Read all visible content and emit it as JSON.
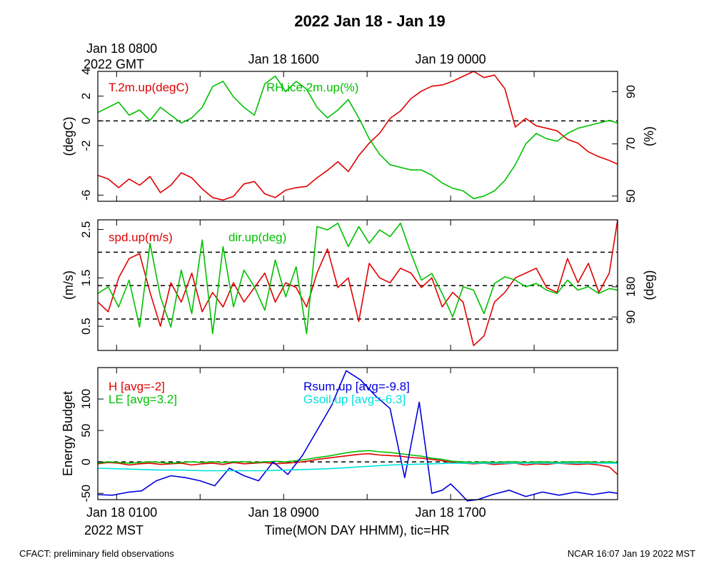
{
  "title": "2022 Jan 18 - Jan 19",
  "footer": {
    "left": "CFACT: preliminary field observations",
    "right": "NCAR 16:07 Jan 19 2022 MST"
  },
  "top_time_axis": {
    "labels": [
      {
        "hour": 1,
        "lines": [
          "Jan 18 0800",
          "2022 GMT"
        ]
      },
      {
        "hour": 9,
        "lines": [
          "Jan 18 1600"
        ]
      },
      {
        "hour": 17,
        "lines": [
          "Jan 19 0000"
        ]
      }
    ]
  },
  "bottom_time_axis": {
    "labels": [
      {
        "hour": 1,
        "lines": [
          "Jan 18 0100",
          "2022 MST"
        ]
      },
      {
        "hour": 9,
        "lines": [
          "Jan 18 0900"
        ]
      },
      {
        "hour": 17,
        "lines": [
          "Jan 18 1700"
        ]
      }
    ],
    "xlabel": "Time(MON DAY HHMM), tic=HR"
  },
  "colors": {
    "red": "#e00000",
    "green": "#00c000",
    "blue": "#0000dd",
    "cyan": "#00e0e0",
    "axis": "#000000"
  },
  "chart_data": [
    {
      "type": "line",
      "panel": "temperature-humidity",
      "x_unit": "hour MST Jan 18",
      "xlim": [
        0.1,
        25.0
      ],
      "ylabel": "(degC)",
      "ylim": [
        -6.5,
        4.0
      ],
      "yticks": [
        -6,
        -2,
        0,
        2,
        4
      ],
      "ytick_labels": [
        "-6",
        "-2",
        "0",
        "2",
        "4"
      ],
      "y2label": "(%)",
      "y2lim": [
        48,
        97.8
      ],
      "y2ticks": [
        50,
        70,
        90
      ],
      "y2tick_labels": [
        "50",
        "70",
        "90"
      ],
      "dashed_levels": [
        0
      ],
      "series": [
        {
          "name": "T.2m.up(degC)",
          "color": "#e00000",
          "axis": "left",
          "x": [
            0.1,
            0.6,
            1.1,
            1.6,
            2.1,
            2.6,
            3.1,
            3.6,
            4.1,
            4.6,
            5.1,
            5.6,
            6.1,
            6.6,
            7.1,
            7.6,
            8.1,
            8.6,
            9.1,
            9.6,
            10.1,
            10.6,
            11.1,
            11.6,
            12.1,
            12.6,
            13.1,
            13.6,
            14.1,
            14.6,
            15.1,
            15.6,
            16.1,
            16.6,
            17.1,
            17.6,
            18.1,
            18.6,
            19.1,
            19.6,
            20.1,
            20.6,
            21.1,
            21.6,
            22.1,
            22.6,
            23.1,
            23.6,
            24.1,
            24.6,
            25.0
          ],
          "values": [
            -4.4,
            -4.7,
            -5.4,
            -4.7,
            -5.2,
            -4.5,
            -5.8,
            -5.2,
            -4.2,
            -4.6,
            -5.5,
            -6.2,
            -6.4,
            -6.1,
            -5.1,
            -4.9,
            -5.9,
            -6.2,
            -5.6,
            -5.4,
            -5.3,
            -4.6,
            -4.0,
            -3.3,
            -4.1,
            -2.8,
            -1.8,
            -1.0,
            0.2,
            0.8,
            1.8,
            2.4,
            2.8,
            2.9,
            3.2,
            3.6,
            4.0,
            3.5,
            3.7,
            2.6,
            -0.5,
            0.2,
            -0.4,
            -0.6,
            -0.8,
            -1.5,
            -1.8,
            -2.5,
            -2.9,
            -3.2,
            -3.5
          ]
        },
        {
          "name": "RH.ice.2m.up(%)",
          "color": "#00c000",
          "axis": "right",
          "x": [
            0.1,
            0.6,
            1.1,
            1.6,
            2.1,
            2.6,
            3.1,
            3.6,
            4.1,
            4.6,
            5.1,
            5.6,
            6.1,
            6.6,
            7.1,
            7.6,
            8.1,
            8.6,
            9.1,
            9.6,
            10.1,
            10.6,
            11.1,
            11.6,
            12.1,
            12.6,
            13.1,
            13.6,
            14.1,
            14.6,
            15.1,
            15.6,
            16.1,
            16.6,
            17.1,
            17.6,
            18.1,
            18.6,
            19.1,
            19.6,
            20.1,
            20.6,
            21.1,
            21.6,
            22.1,
            22.6,
            23.1,
            23.6,
            24.1,
            24.6,
            25.0
          ],
          "values": [
            82,
            84,
            86,
            81,
            83,
            79,
            84,
            81,
            78,
            80,
            84,
            92,
            94,
            88,
            84,
            81,
            93,
            96,
            90,
            94,
            91,
            84,
            80,
            83,
            87,
            80,
            72,
            66,
            62,
            61,
            60,
            60,
            58,
            55,
            53,
            52,
            49,
            50,
            52,
            56,
            62,
            70,
            74,
            72,
            71,
            74,
            76,
            77,
            78,
            79,
            78
          ]
        }
      ]
    },
    {
      "type": "line",
      "panel": "wind",
      "x_unit": "hour MST Jan 18",
      "xlim": [
        0.1,
        25.0
      ],
      "ylabel": "(m/s)",
      "ylim": [
        0.0,
        2.7
      ],
      "yticks": [
        0.5,
        1.5,
        2.5
      ],
      "ytick_labels": [
        "0.5",
        "1.5",
        "2.5"
      ],
      "y2label": "(deg)",
      "y2lim": [
        -10,
        380
      ],
      "y2ticks": [
        90,
        180
      ],
      "y2tick_labels": [
        "90",
        "180"
      ],
      "dashed_levels": [
        0.65,
        1.34,
        2.03
      ],
      "series": [
        {
          "name": "spd.up(m/s)",
          "color": "#e00000",
          "axis": "left",
          "x": [
            0.1,
            0.6,
            1.1,
            1.6,
            2.1,
            2.6,
            3.1,
            3.6,
            4.1,
            4.6,
            5.1,
            5.6,
            6.1,
            6.6,
            7.1,
            7.6,
            8.1,
            8.6,
            9.1,
            9.6,
            10.1,
            10.6,
            11.1,
            11.6,
            12.1,
            12.6,
            13.1,
            13.6,
            14.1,
            14.6,
            15.1,
            15.6,
            16.1,
            16.6,
            17.1,
            17.6,
            18.1,
            18.6,
            19.1,
            19.6,
            20.1,
            20.6,
            21.1,
            21.6,
            22.1,
            22.6,
            23.1,
            23.6,
            24.1,
            24.6,
            25.0
          ],
          "values": [
            1.0,
            0.8,
            1.5,
            1.9,
            2.0,
            1.2,
            0.5,
            1.4,
            1.0,
            1.6,
            0.8,
            1.2,
            0.9,
            1.4,
            1.0,
            1.3,
            1.6,
            1.0,
            1.4,
            1.3,
            0.9,
            1.6,
            2.1,
            1.3,
            1.5,
            0.6,
            1.8,
            1.5,
            1.4,
            1.7,
            1.6,
            1.3,
            1.5,
            0.9,
            1.2,
            1.0,
            0.1,
            0.3,
            1.0,
            1.2,
            1.5,
            1.6,
            1.7,
            1.3,
            1.2,
            1.9,
            1.4,
            1.8,
            1.2,
            1.6,
            2.7
          ]
        },
        {
          "name": "dir.up(deg)",
          "color": "#00c000",
          "axis": "right",
          "x": [
            0.1,
            0.6,
            1.1,
            1.6,
            2.1,
            2.6,
            3.1,
            3.6,
            4.1,
            4.6,
            5.1,
            5.6,
            6.1,
            6.6,
            7.1,
            7.6,
            8.1,
            8.6,
            9.1,
            9.6,
            10.1,
            10.6,
            11.1,
            11.6,
            12.1,
            12.6,
            13.1,
            13.6,
            14.1,
            14.6,
            15.1,
            15.6,
            16.1,
            16.6,
            17.1,
            17.6,
            18.1,
            18.6,
            19.1,
            19.6,
            20.1,
            20.6,
            21.1,
            21.6,
            22.1,
            22.6,
            23.1,
            23.6,
            24.1,
            24.6,
            25.0
          ],
          "values": [
            160,
            180,
            120,
            200,
            60,
            310,
            150,
            60,
            230,
            100,
            320,
            40,
            300,
            120,
            230,
            180,
            110,
            260,
            150,
            240,
            40,
            360,
            350,
            370,
            300,
            360,
            310,
            350,
            330,
            370,
            280,
            200,
            220,
            160,
            90,
            180,
            170,
            100,
            190,
            210,
            200,
            180,
            190,
            170,
            160,
            200,
            170,
            180,
            160,
            175,
            170
          ]
        }
      ]
    },
    {
      "type": "line",
      "panel": "energy-budget",
      "x_unit": "hour MST Jan 18",
      "xlim": [
        0.1,
        25.0
      ],
      "ylabel": "Energy Budget",
      "ylim": [
        -60,
        150
      ],
      "yticks": [
        -50,
        0,
        50,
        100
      ],
      "ytick_labels": [
        "-50",
        "0",
        "50",
        "100"
      ],
      "dashed_levels": [
        0
      ],
      "series": [
        {
          "name": "H [avg=-2]",
          "color": "#e00000",
          "x": [
            0.1,
            0.6,
            1.1,
            1.6,
            2.1,
            2.6,
            3.1,
            3.6,
            4.1,
            4.6,
            5.1,
            5.6,
            6.1,
            6.6,
            7.1,
            7.6,
            8.1,
            8.6,
            9.1,
            9.6,
            10.1,
            10.6,
            11.1,
            11.6,
            12.1,
            12.6,
            13.1,
            13.6,
            14.1,
            14.6,
            15.1,
            15.6,
            16.1,
            16.6,
            17.1,
            17.6,
            18.1,
            18.6,
            19.1,
            19.6,
            20.1,
            20.6,
            21.1,
            21.6,
            22.1,
            22.6,
            23.1,
            23.6,
            24.1,
            24.6,
            25.0
          ],
          "values": [
            -3,
            -1,
            -2,
            -5,
            -3,
            -2,
            -4,
            -3,
            -2,
            -5,
            -3,
            -2,
            -4,
            -1,
            -3,
            -2,
            -1,
            -3,
            -2,
            -1,
            1,
            4,
            6,
            8,
            10,
            12,
            13,
            11,
            10,
            9,
            7,
            6,
            4,
            2,
            -1,
            -2,
            -3,
            -2,
            -4,
            -3,
            -2,
            -5,
            -3,
            -4,
            -2,
            -3,
            -4,
            -3,
            -5,
            -8,
            -20
          ]
        },
        {
          "name": "LE [avg=3.2]",
          "color": "#00c000",
          "x": [
            0.1,
            0.6,
            1.1,
            1.6,
            2.1,
            2.6,
            3.1,
            3.6,
            4.1,
            4.6,
            5.1,
            5.6,
            6.1,
            6.6,
            7.1,
            7.6,
            8.1,
            8.6,
            9.1,
            9.6,
            10.1,
            10.6,
            11.1,
            11.6,
            12.1,
            12.6,
            13.1,
            13.6,
            14.1,
            14.6,
            15.1,
            15.6,
            16.1,
            16.6,
            17.1,
            17.6,
            18.1,
            18.6,
            19.1,
            19.6,
            20.1,
            20.6,
            21.1,
            21.6,
            22.1,
            22.6,
            23.1,
            23.6,
            24.1,
            24.6,
            25.0
          ],
          "values": [
            -2,
            0,
            -1,
            -2,
            -1,
            0,
            -1,
            -2,
            -1,
            0,
            -1,
            0,
            -1,
            0,
            0,
            -1,
            0,
            1,
            0,
            2,
            4,
            7,
            9,
            12,
            15,
            17,
            18,
            16,
            15,
            13,
            11,
            9,
            6,
            4,
            1,
            0,
            -1,
            0,
            -1,
            0,
            0,
            -1,
            0,
            0,
            -1,
            0,
            0,
            0,
            -1,
            0,
            -1
          ]
        },
        {
          "name": "Rsum.up [avg=-9.8]",
          "color": "#0000dd",
          "x": [
            0.1,
            0.8,
            1.6,
            2.2,
            2.9,
            3.6,
            4.3,
            5.0,
            5.7,
            6.4,
            7.1,
            7.8,
            8.5,
            9.2,
            9.9,
            10.6,
            11.3,
            12.0,
            12.7,
            13.4,
            14.1,
            14.8,
            15.5,
            16.1,
            16.6,
            17.0,
            17.4,
            17.8,
            18.3,
            19.0,
            19.8,
            20.6,
            21.4,
            22.2,
            23.0,
            23.8,
            24.6,
            25.0
          ],
          "values": [
            -52,
            -53,
            -48,
            -46,
            -30,
            -22,
            -25,
            -30,
            -38,
            -10,
            -22,
            -30,
            0,
            -20,
            10,
            50,
            90,
            145,
            130,
            105,
            85,
            -25,
            95,
            -50,
            -45,
            -35,
            -48,
            -62,
            -60,
            -52,
            -45,
            -55,
            -48,
            -53,
            -48,
            -52,
            -48,
            -50
          ]
        },
        {
          "name": "Gsoil.up [avg=-6.3]",
          "color": "#00e0e0",
          "x": [
            0.1,
            1.1,
            2.1,
            3.1,
            4.1,
            5.1,
            6.1,
            7.1,
            8.1,
            9.1,
            10.1,
            11.1,
            12.1,
            13.1,
            14.1,
            15.1,
            16.1,
            17.1,
            18.1,
            19.1,
            20.1,
            21.1,
            22.1,
            23.1,
            24.1,
            25.0
          ],
          "values": [
            -10,
            -11,
            -12,
            -13,
            -13,
            -14,
            -14,
            -14,
            -14,
            -13,
            -12,
            -11,
            -9,
            -7,
            -5,
            -4,
            -3,
            -2,
            -2,
            -2,
            -2,
            -2,
            -2,
            -2,
            -2,
            -2
          ]
        }
      ]
    }
  ]
}
